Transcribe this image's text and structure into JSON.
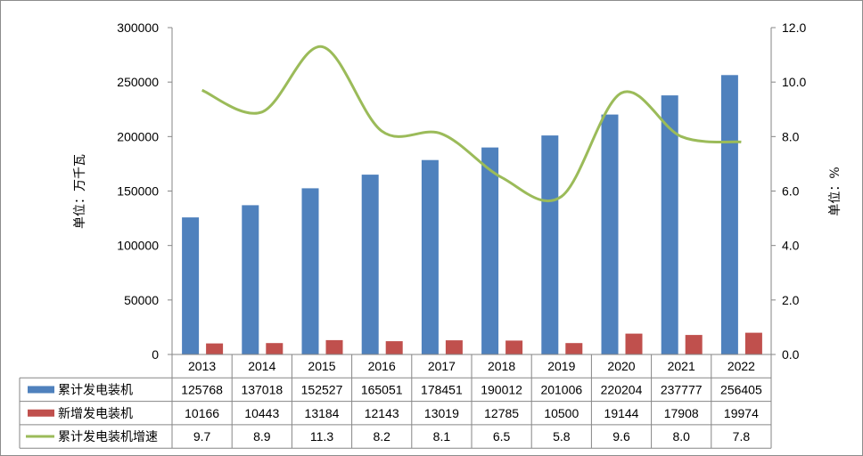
{
  "chart_data": {
    "type": "bar",
    "categories": [
      "2013",
      "2014",
      "2015",
      "2016",
      "2017",
      "2018",
      "2019",
      "2020",
      "2021",
      "2022"
    ],
    "series": [
      {
        "name": "累计发电装机",
        "type": "bar",
        "axis": "left",
        "color": "#4f81bd",
        "values": [
          125768,
          137018,
          152527,
          165051,
          178451,
          190012,
          201006,
          220204,
          237777,
          256405
        ],
        "labels": [
          "125768",
          "137018",
          "152527",
          "165051",
          "178451",
          "190012",
          "201006",
          "220204",
          "237777",
          "256405"
        ]
      },
      {
        "name": "新增发电装机",
        "type": "bar",
        "axis": "left",
        "color": "#c0504d",
        "values": [
          10166,
          10443,
          13184,
          12143,
          13019,
          12785,
          10500,
          19144,
          17908,
          19974
        ],
        "labels": [
          "10166",
          "10443",
          "13184",
          "12143",
          "13019",
          "12785",
          "10500",
          "19144",
          "17908",
          "19974"
        ]
      },
      {
        "name": "累计发电装机增速",
        "type": "line",
        "axis": "right",
        "color": "#9bbb59",
        "values": [
          9.7,
          8.9,
          11.3,
          8.2,
          8.1,
          6.5,
          5.8,
          9.6,
          8.0,
          7.8
        ],
        "labels": [
          "9.7",
          "8.9",
          "11.3",
          "8.2",
          "8.1",
          "6.5",
          "5.8",
          "9.6",
          "8.0",
          "7.8"
        ]
      }
    ],
    "left_axis": {
      "label": "单位：万千瓦",
      "ylim": [
        0,
        300000
      ],
      "ticks": [
        "0",
        "50000",
        "100000",
        "150000",
        "200000",
        "250000",
        "300000"
      ]
    },
    "right_axis": {
      "label": "单位：%",
      "ylim": [
        0,
        12
      ],
      "ticks": [
        "0.0",
        "2.0",
        "4.0",
        "6.0",
        "8.0",
        "10.0",
        "12.0"
      ]
    },
    "grid": false,
    "legend": "data table"
  }
}
